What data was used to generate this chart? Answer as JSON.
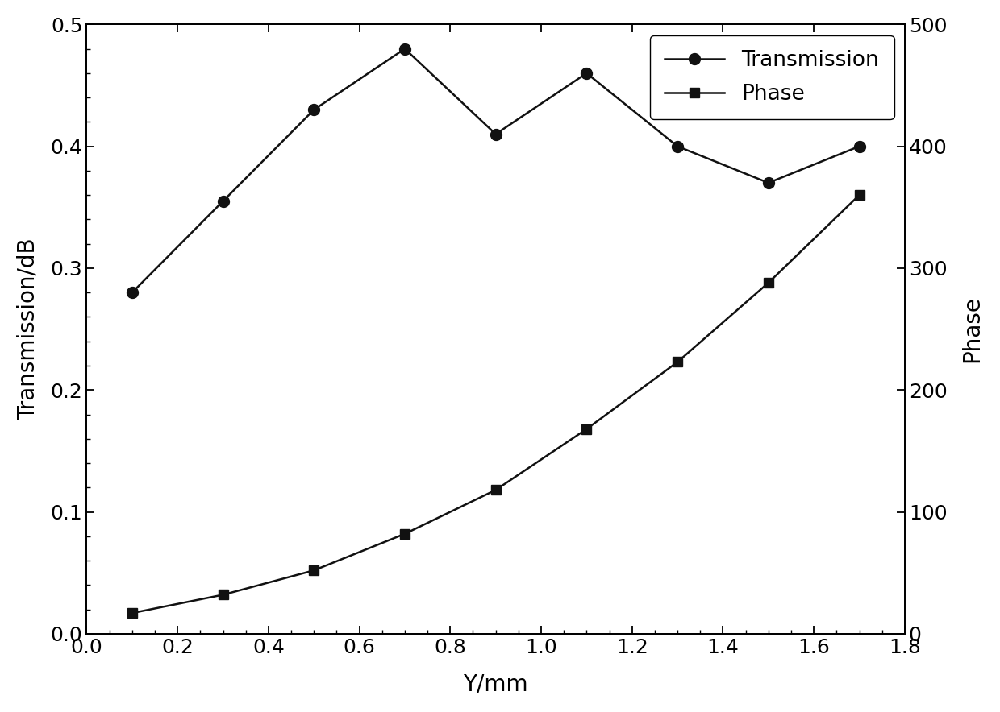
{
  "x": [
    0.1,
    0.3,
    0.5,
    0.7,
    0.9,
    1.1,
    1.3,
    1.5,
    1.7
  ],
  "transmission": [
    0.28,
    0.355,
    0.43,
    0.48,
    0.41,
    0.46,
    0.4,
    0.37,
    0.4
  ],
  "phase_left": [
    0.017,
    0.032,
    0.052,
    0.082,
    0.118,
    0.168,
    0.223,
    0.288,
    0.36
  ],
  "phase_scale": 1000,
  "xlabel": "Y/mm",
  "ylabel_left": "Transmission/dB",
  "ylabel_right": "Phase",
  "xlim": [
    0.0,
    1.8
  ],
  "ylim_left": [
    0.0,
    0.5
  ],
  "xticks": [
    0.0,
    0.2,
    0.4,
    0.6,
    0.8,
    1.0,
    1.2,
    1.4,
    1.6,
    1.8
  ],
  "yticks_left": [
    0.0,
    0.1,
    0.2,
    0.3,
    0.4,
    0.5
  ],
  "yticks_right_labels": [
    0,
    100,
    200,
    300,
    400,
    500
  ],
  "legend_labels": [
    "Transmission",
    "Phase"
  ],
  "line_color": "#111111",
  "bg_color": "#ffffff",
  "figsize": [
    12.4,
    8.84
  ],
  "dpi": 100,
  "font_size": 20,
  "tick_font_size": 18,
  "legend_font_size": 19,
  "linewidth": 1.8,
  "marker_size_circle": 10,
  "marker_size_square": 8
}
